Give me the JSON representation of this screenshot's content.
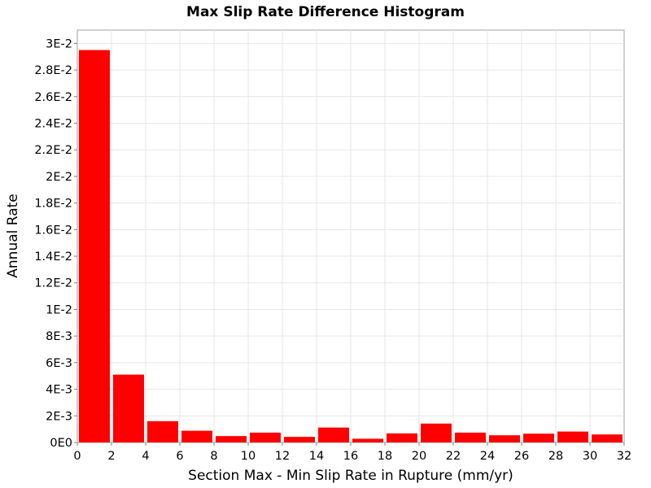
{
  "chart_data": {
    "type": "bar",
    "title": "Max Slip Rate Difference Histogram",
    "xlabel": "Section Max - Min Slip Rate in Rupture (mm/yr)",
    "ylabel": "Annual Rate",
    "xlim": [
      0,
      32
    ],
    "ylim": [
      0,
      0.031
    ],
    "grid": true,
    "bar_color": "#ff0000",
    "bin_width": 2,
    "bins": [
      {
        "center": 1,
        "value": 0.0295
      },
      {
        "center": 3,
        "value": 0.0051
      },
      {
        "center": 5,
        "value": 0.0016
      },
      {
        "center": 7,
        "value": 0.00088
      },
      {
        "center": 9,
        "value": 0.00048
      },
      {
        "center": 11,
        "value": 0.00074
      },
      {
        "center": 13,
        "value": 0.00042
      },
      {
        "center": 15,
        "value": 0.00112
      },
      {
        "center": 17,
        "value": 0.00028
      },
      {
        "center": 19,
        "value": 0.00068
      },
      {
        "center": 21,
        "value": 0.00142
      },
      {
        "center": 23,
        "value": 0.00074
      },
      {
        "center": 25,
        "value": 0.00054
      },
      {
        "center": 27,
        "value": 0.00066
      },
      {
        "center": 29,
        "value": 0.00082
      },
      {
        "center": 31,
        "value": 0.0006
      }
    ],
    "x_ticks": [
      {
        "value": 0,
        "label": "0"
      },
      {
        "value": 2,
        "label": "2"
      },
      {
        "value": 4,
        "label": "4"
      },
      {
        "value": 6,
        "label": "6"
      },
      {
        "value": 8,
        "label": "8"
      },
      {
        "value": 10,
        "label": "10"
      },
      {
        "value": 12,
        "label": "12"
      },
      {
        "value": 14,
        "label": "14"
      },
      {
        "value": 16,
        "label": "16"
      },
      {
        "value": 18,
        "label": "18"
      },
      {
        "value": 20,
        "label": "20"
      },
      {
        "value": 22,
        "label": "22"
      },
      {
        "value": 24,
        "label": "24"
      },
      {
        "value": 26,
        "label": "26"
      },
      {
        "value": 28,
        "label": "28"
      },
      {
        "value": 30,
        "label": "30"
      },
      {
        "value": 32,
        "label": "32"
      }
    ],
    "y_ticks": [
      {
        "value": 0,
        "label": "0E0"
      },
      {
        "value": 0.002,
        "label": "2E-3"
      },
      {
        "value": 0.004,
        "label": "4E-3"
      },
      {
        "value": 0.006,
        "label": "6E-3"
      },
      {
        "value": 0.008,
        "label": "8E-3"
      },
      {
        "value": 0.01,
        "label": "1E-2"
      },
      {
        "value": 0.012,
        "label": "1.2E-2"
      },
      {
        "value": 0.014,
        "label": "1.4E-2"
      },
      {
        "value": 0.016,
        "label": "1.6E-2"
      },
      {
        "value": 0.018,
        "label": "1.8E-2"
      },
      {
        "value": 0.02,
        "label": "2E-2"
      },
      {
        "value": 0.022,
        "label": "2.2E-2"
      },
      {
        "value": 0.024,
        "label": "2.4E-2"
      },
      {
        "value": 0.026,
        "label": "2.6E-2"
      },
      {
        "value": 0.028,
        "label": "2.8E-2"
      },
      {
        "value": 0.03,
        "label": "3E-2"
      }
    ]
  }
}
